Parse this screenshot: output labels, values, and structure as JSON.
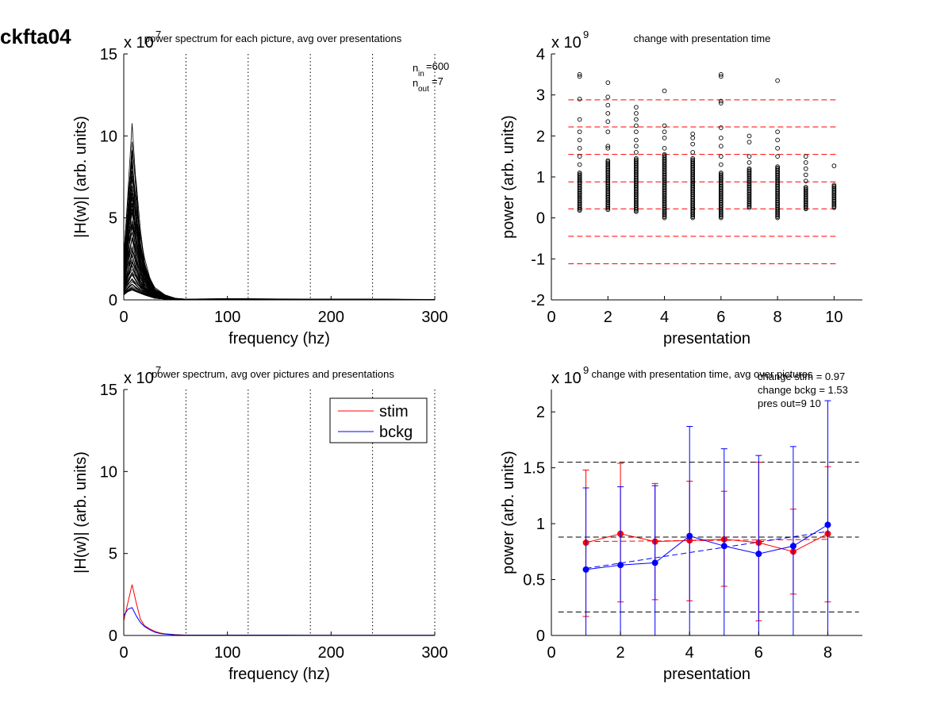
{
  "figure_label": "ckfta04",
  "colors": {
    "stim": "#ff0000",
    "bckg": "#0000ff",
    "axes": "#000000",
    "ref": "#000000"
  },
  "chart_data": [
    {
      "type": "line",
      "title": "power spectrum for each picture, avg over presentations",
      "xlabel": "frequency (hz)",
      "ylabel": "|H(w)| (arb. units)",
      "exponent": "x 10",
      "exponent_power": "7",
      "xlim": [
        0,
        300
      ],
      "ylim": [
        0,
        15
      ],
      "xticks": [
        "0",
        "100",
        "200",
        "300"
      ],
      "yticks": [
        "0",
        "5",
        "10",
        "15"
      ],
      "vlines": [
        60,
        120,
        180,
        240,
        300
      ],
      "annotation": {
        "nin_text": "n",
        "nin_sub": "in",
        "nin_val": "=600",
        "nout_text": "n",
        "nout_sub": "out",
        "nout_val": "=7"
      },
      "series_style": "many overlaid spectra (one per picture)",
      "peak_frequency": 8,
      "peak_max": 10.8,
      "x": [
        0,
        4,
        8,
        12,
        16,
        20,
        25,
        30,
        40,
        50,
        60,
        100,
        150,
        200,
        250,
        300
      ],
      "envelope_max": [
        3.0,
        6.8,
        10.8,
        7.5,
        4.5,
        2.7,
        1.5,
        0.8,
        0.3,
        0.1,
        0.05,
        0.08,
        0.06,
        0.05,
        0.04,
        0.03
      ],
      "envelope_min": [
        0.3,
        0.5,
        0.6,
        0.5,
        0.4,
        0.3,
        0.2,
        0.1,
        0.05,
        0.02,
        0.01,
        0.01,
        0.01,
        0.01,
        0.01,
        0.01
      ]
    },
    {
      "type": "scatter",
      "title": "change with presentation time",
      "xlabel": "presentation",
      "ylabel": "power (arb. units)",
      "exponent": "x 10",
      "exponent_power": "9",
      "xlim": [
        0,
        11
      ],
      "ylim": [
        -2,
        4
      ],
      "xticks": [
        "0",
        "2",
        "4",
        "6",
        "8",
        "10"
      ],
      "yticks": [
        "-2",
        "-1",
        "0",
        "1",
        "2",
        "3",
        "4"
      ],
      "hlines": [
        2.88,
        2.22,
        1.55,
        0.88,
        0.22,
        -0.45,
        -1.12
      ],
      "columns": [
        {
          "x": 1,
          "min": 0.18,
          "dense_max": 1.1,
          "outliers": [
            1.3,
            1.5,
            1.7,
            1.9,
            2.1,
            2.4,
            2.9,
            3.45,
            3.5
          ]
        },
        {
          "x": 2,
          "min": 0.2,
          "dense_max": 1.4,
          "outliers": [
            1.7,
            1.75,
            2.1,
            2.35,
            2.55,
            2.75,
            2.95,
            3.3
          ]
        },
        {
          "x": 3,
          "min": 0.15,
          "dense_max": 1.45,
          "outliers": [
            1.6,
            1.75,
            1.9,
            2.1,
            2.25,
            2.4,
            2.55,
            2.7
          ]
        },
        {
          "x": 4,
          "min": 0.0,
          "dense_max": 1.55,
          "outliers": [
            1.7,
            1.95,
            2.1,
            2.25,
            3.1
          ]
        },
        {
          "x": 5,
          "min": 0.0,
          "dense_max": 1.45,
          "outliers": [
            1.6,
            1.8,
            1.95,
            2.05
          ]
        },
        {
          "x": 6,
          "min": 0.0,
          "dense_max": 1.1,
          "outliers": [
            1.3,
            1.5,
            1.75,
            1.95,
            2.2,
            2.8,
            2.85,
            3.45,
            3.5
          ]
        },
        {
          "x": 7,
          "min": 0.25,
          "dense_max": 1.2,
          "outliers": [
            1.35,
            1.5,
            1.85,
            2.0
          ]
        },
        {
          "x": 8,
          "min": 0.0,
          "dense_max": 1.25,
          "outliers": [
            1.5,
            1.7,
            1.9,
            2.1,
            3.35
          ]
        },
        {
          "x": 9,
          "min": 0.22,
          "dense_max": 0.75,
          "outliers": [
            0.9,
            1.05,
            1.2,
            1.35,
            1.5
          ]
        },
        {
          "x": 10,
          "min": 0.25,
          "dense_max": 0.8,
          "outliers": [
            1.27
          ]
        }
      ]
    },
    {
      "type": "line",
      "title": "power spectrum, avg over pictures and presentations",
      "xlabel": "frequency (hz)",
      "ylabel": "|H(w)| (arb. units)",
      "exponent": "x 10",
      "exponent_power": "7",
      "xlim": [
        0,
        300
      ],
      "ylim": [
        0,
        15
      ],
      "xticks": [
        "0",
        "100",
        "200",
        "300"
      ],
      "yticks": [
        "0",
        "5",
        "10",
        "15"
      ],
      "vlines": [
        60,
        120,
        180,
        240,
        300
      ],
      "legend": [
        "stim",
        "bckg"
      ],
      "legend_position": "top-right",
      "series": [
        {
          "name": "stim",
          "x": [
            0,
            4,
            8,
            12,
            16,
            20,
            25,
            30,
            35,
            40,
            50,
            60,
            100,
            150,
            200,
            250,
            300
          ],
          "values": [
            0.9,
            2.0,
            3.1,
            2.0,
            1.0,
            0.6,
            0.4,
            0.25,
            0.15,
            0.1,
            0.05,
            0.02,
            0.02,
            0.02,
            0.01,
            0.01,
            0.01
          ]
        },
        {
          "name": "bckg",
          "x": [
            0,
            4,
            8,
            12,
            16,
            20,
            25,
            30,
            35,
            40,
            50,
            60,
            100,
            150,
            200,
            250,
            300
          ],
          "values": [
            1.2,
            1.6,
            1.7,
            1.2,
            0.8,
            0.55,
            0.35,
            0.2,
            0.12,
            0.08,
            0.04,
            0.02,
            0.02,
            0.02,
            0.01,
            0.01,
            0.01
          ]
        }
      ]
    },
    {
      "type": "line",
      "title": "change with presentation time, avg over pictures",
      "xlabel": "presentation",
      "ylabel": "power (arb. units)",
      "exponent": "x 10",
      "exponent_power": "9",
      "xlim": [
        0,
        9
      ],
      "ylim": [
        0,
        2.2
      ],
      "xticks": [
        "0",
        "2",
        "4",
        "6",
        "8"
      ],
      "yticks": [
        "0",
        "0.5",
        "1",
        "1.5",
        "2"
      ],
      "annotations": [
        "change stim = 0.97",
        "change bckg = 1.53",
        "pres out=9 10"
      ],
      "hlines": [
        1.55,
        0.88,
        0.21
      ],
      "series": [
        {
          "name": "stim",
          "x": [
            1,
            2,
            3,
            4,
            5,
            6,
            7,
            8
          ],
          "values": [
            0.83,
            0.91,
            0.84,
            0.85,
            0.86,
            0.83,
            0.75,
            0.91
          ],
          "err_low": [
            0.17,
            0.3,
            0.32,
            0.31,
            0.44,
            0.13,
            0.37,
            0.3
          ],
          "err_high": [
            1.48,
            1.54,
            1.36,
            1.38,
            1.29,
            1.55,
            1.13,
            1.51
          ]
        },
        {
          "name": "bckg",
          "x": [
            1,
            2,
            3,
            4,
            5,
            6,
            7,
            8
          ],
          "values": [
            0.59,
            0.63,
            0.65,
            0.89,
            0.8,
            0.73,
            0.8,
            0.99
          ],
          "err_low": [
            0.0,
            0.0,
            0.0,
            0.0,
            0.0,
            0.0,
            0.0,
            0.0
          ],
          "err_high": [
            1.32,
            1.33,
            1.34,
            1.87,
            1.67,
            1.61,
            1.69,
            2.1
          ]
        }
      ],
      "trend_lines": [
        {
          "name": "stim",
          "from": [
            1,
            0.84
          ],
          "to": [
            8,
            0.86
          ]
        },
        {
          "name": "bckg",
          "from": [
            1,
            0.6
          ],
          "to": [
            8,
            0.93
          ]
        }
      ]
    }
  ]
}
